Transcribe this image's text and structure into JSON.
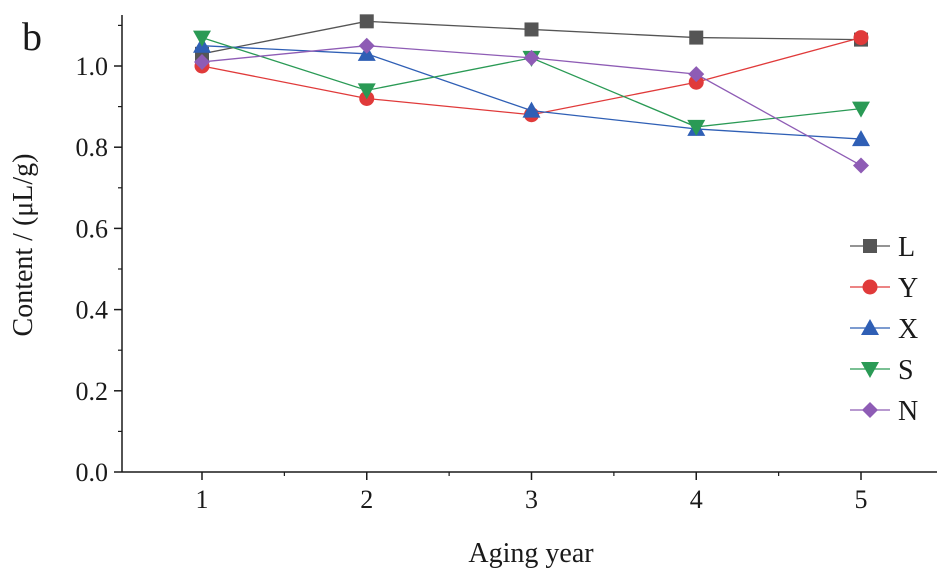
{
  "panel_label": "b",
  "chart_data": {
    "type": "line",
    "xlabel": "Aging year",
    "ylabel": "Content / (μL/g)",
    "x": [
      1,
      2,
      3,
      4,
      5
    ],
    "x_ticks": [
      "1",
      "2",
      "3",
      "4",
      "5"
    ],
    "y_ticks": [
      "0.0",
      "0.2",
      "0.4",
      "0.6",
      "0.8",
      "1.0"
    ],
    "ylim": [
      0,
      1.12
    ],
    "xlim": [
      0.5,
      5.5
    ],
    "grid": false,
    "legend_position": "right",
    "series": [
      {
        "name": "L",
        "color": "#555555",
        "marker": "square",
        "values": [
          1.03,
          1.11,
          1.09,
          1.07,
          1.065
        ]
      },
      {
        "name": "Y",
        "color": "#e03a3a",
        "marker": "circle",
        "values": [
          1.0,
          0.92,
          0.88,
          0.96,
          1.07
        ]
      },
      {
        "name": "X",
        "color": "#2f5fb5",
        "marker": "triangle-up",
        "values": [
          1.05,
          1.03,
          0.89,
          0.845,
          0.82
        ]
      },
      {
        "name": "S",
        "color": "#2a9a55",
        "marker": "triangle-down",
        "values": [
          1.07,
          0.94,
          1.02,
          0.85,
          0.895
        ]
      },
      {
        "name": "N",
        "color": "#8e5cb5",
        "marker": "diamond",
        "values": [
          1.01,
          1.05,
          1.02,
          0.98,
          0.755
        ]
      }
    ]
  }
}
